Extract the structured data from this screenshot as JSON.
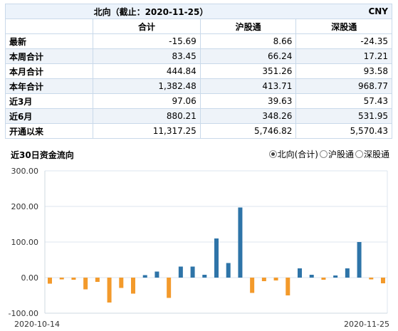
{
  "table": {
    "title": "北向（截止：2020-11-25）",
    "currency": "CNY",
    "columns": [
      "合计",
      "沪股通",
      "深股通"
    ],
    "rows": [
      {
        "label": "最新",
        "values": [
          "-15.69",
          "8.66",
          "-24.35"
        ]
      },
      {
        "label": "本周合计",
        "values": [
          "83.45",
          "66.24",
          "17.21"
        ]
      },
      {
        "label": "本月合计",
        "values": [
          "444.84",
          "351.26",
          "93.58"
        ]
      },
      {
        "label": "本年合计",
        "values": [
          "1,382.48",
          "413.71",
          "968.77"
        ]
      },
      {
        "label": "近3月",
        "values": [
          "97.06",
          "39.63",
          "57.43"
        ]
      },
      {
        "label": "近6月",
        "values": [
          "880.21",
          "348.26",
          "531.95"
        ]
      },
      {
        "label": "开通以来",
        "values": [
          "11,317.25",
          "5,746.82",
          "5,570.43"
        ]
      }
    ]
  },
  "chart_section": {
    "title": "近30日资金流向",
    "radio_options": [
      {
        "label": "北向(合计)",
        "checked": true
      },
      {
        "label": "沪股通",
        "checked": false
      },
      {
        "label": "深股通",
        "checked": false
      }
    ]
  },
  "colors": {
    "positive_bar": "#2e74a8",
    "negative_bar": "#f39a2b"
  },
  "chart_data": {
    "type": "bar",
    "title": "近30日资金流向",
    "xlabel": "",
    "ylabel": "",
    "ylim": [
      -100,
      300
    ],
    "yticks": [
      -100,
      0,
      100,
      200,
      300
    ],
    "ytick_labels": [
      "-100.00",
      "0.00",
      "100.00",
      "200.00",
      "300.00"
    ],
    "x_start_label": "2020-10-14",
    "x_end_label": "2020-11-25",
    "grid": true,
    "series": [
      {
        "values": [
          -17,
          -5,
          -6,
          -33,
          -12,
          -70,
          -29,
          -45,
          7,
          17,
          -57,
          31,
          31,
          8,
          110,
          41,
          197,
          -43,
          -10,
          -8,
          -50,
          26,
          8,
          -6,
          6,
          26,
          100,
          -5,
          -16
        ]
      }
    ]
  }
}
